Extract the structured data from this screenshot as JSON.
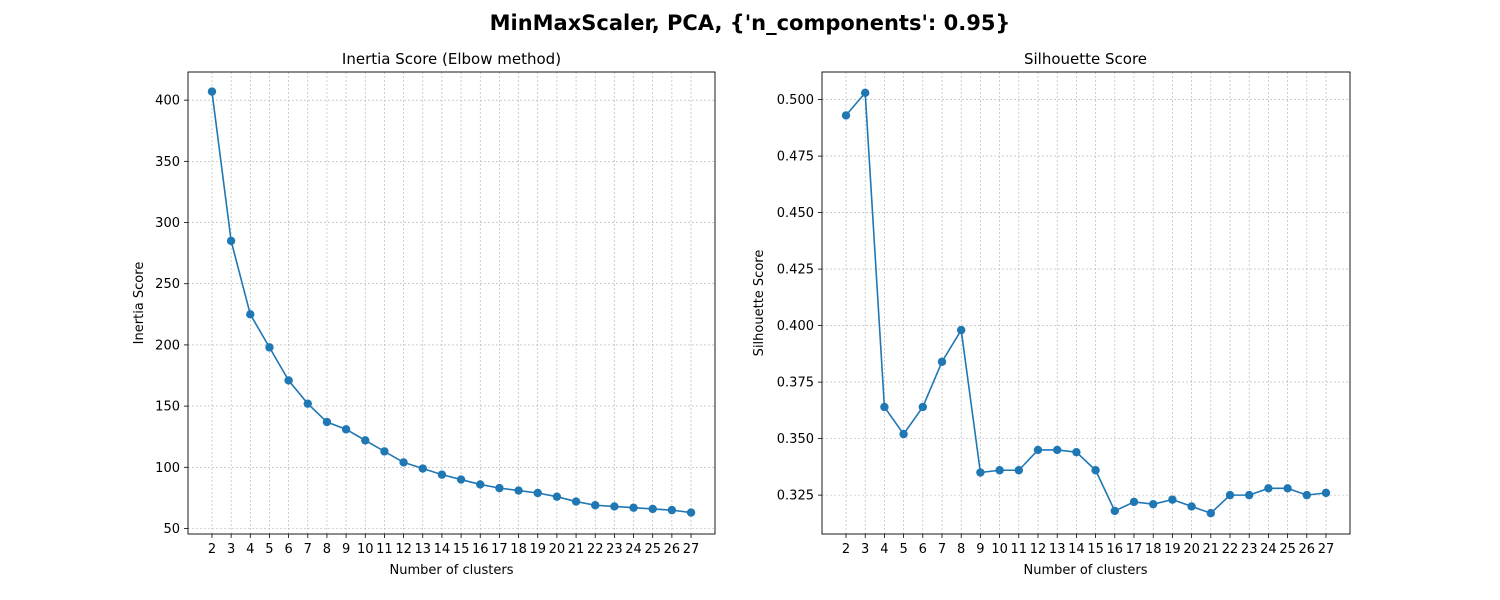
{
  "figure": {
    "suptitle": "MinMaxScaler, PCA, {'n_components': 0.95}"
  },
  "chart_data": [
    {
      "type": "line",
      "title": "Inertia Score (Elbow method)",
      "xlabel": "Number of clusters",
      "ylabel": "Inertia Score",
      "x": [
        2,
        3,
        4,
        5,
        6,
        7,
        8,
        9,
        10,
        11,
        12,
        13,
        14,
        15,
        16,
        17,
        18,
        19,
        20,
        21,
        22,
        23,
        24,
        25,
        26,
        27
      ],
      "values": [
        407,
        285,
        225,
        198,
        171,
        152,
        137,
        131,
        122,
        113,
        104,
        99,
        94,
        90,
        86,
        83,
        81,
        79,
        76,
        72,
        69,
        68,
        67,
        66,
        65,
        63
      ],
      "ylim": [
        45.5,
        423
      ],
      "yticks": [
        50,
        100,
        150,
        200,
        250,
        300,
        350,
        400
      ],
      "ytick_labels": [
        "50",
        "100",
        "150",
        "200",
        "250",
        "300",
        "350",
        "400"
      ],
      "grid": true,
      "marker": "o",
      "color": "#1f77b4"
    },
    {
      "type": "line",
      "title": "Silhouette Score",
      "xlabel": "Number of clusters",
      "ylabel": "Silhouette Score",
      "x": [
        2,
        3,
        4,
        5,
        6,
        7,
        8,
        9,
        10,
        11,
        12,
        13,
        14,
        15,
        16,
        17,
        18,
        19,
        20,
        21,
        22,
        23,
        24,
        25,
        26,
        27
      ],
      "values": [
        0.493,
        0.503,
        0.364,
        0.352,
        0.364,
        0.384,
        0.398,
        0.335,
        0.336,
        0.336,
        0.345,
        0.345,
        0.344,
        0.336,
        0.318,
        0.322,
        0.321,
        0.323,
        0.32,
        0.317,
        0.325,
        0.325,
        0.328,
        0.328,
        0.325,
        0.326
      ],
      "ylim": [
        0.3078,
        0.5122
      ],
      "yticks": [
        0.325,
        0.35,
        0.375,
        0.4,
        0.425,
        0.45,
        0.475,
        0.5
      ],
      "ytick_labels": [
        "0.325",
        "0.350",
        "0.375",
        "0.400",
        "0.425",
        "0.450",
        "0.475",
        "0.500"
      ],
      "grid": true,
      "marker": "o",
      "color": "#1f77b4"
    }
  ]
}
